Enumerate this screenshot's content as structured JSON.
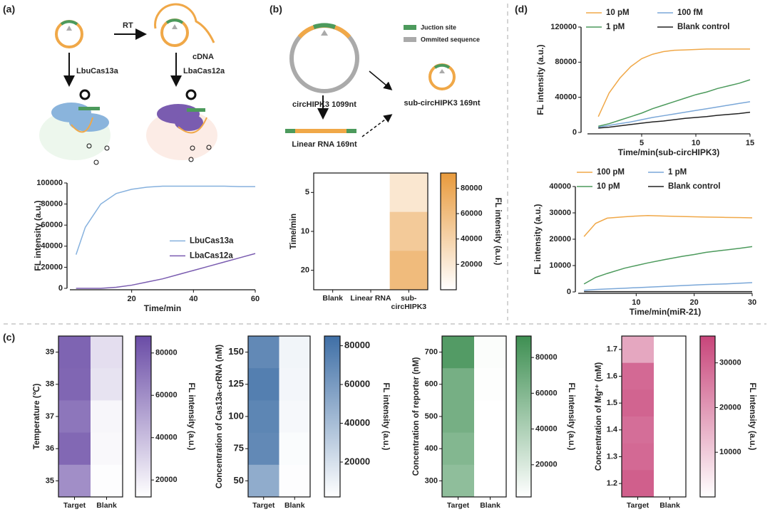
{
  "panels": [
    "(a)",
    "(b)",
    "(c)",
    "(d)"
  ],
  "diagram": {
    "a": {
      "rt": "RT",
      "cdna": "cDNA",
      "enzyme1": "LbuCas13a",
      "enzyme2": "LbaCas12a"
    },
    "b": {
      "legend1": "Juction site",
      "legend2": "Ommited sequence",
      "circ": "circHIPK3 1099nt",
      "linear": "Linear RNA 169nt",
      "sub": "sub-circHIPK3 169nt"
    }
  },
  "chart_data": [
    {
      "type": "line",
      "xlabel": "Time/min",
      "ylabel": "FL intensity (a.u.)",
      "x": [
        2,
        5,
        10,
        15,
        20,
        25,
        30,
        35,
        40,
        45,
        50,
        55,
        60
      ],
      "series": [
        {
          "name": "LbuCas13a",
          "color": "#86b1de",
          "values": [
            32000,
            58000,
            80000,
            90000,
            94000,
            96000,
            97000,
            97000,
            97000,
            97000,
            97000,
            96500,
            96500
          ]
        },
        {
          "name": "LbaCas12a",
          "color": "#7a5cb0",
          "values": [
            0,
            0,
            0,
            1000,
            3000,
            6000,
            9000,
            13000,
            17000,
            21000,
            25000,
            29000,
            33000
          ]
        }
      ],
      "xlim": [
        0,
        60
      ],
      "ylim": [
        0,
        100000
      ],
      "xticks": [
        20,
        40,
        60
      ],
      "yticks": [
        0,
        20000,
        40000,
        60000,
        80000,
        100000
      ],
      "legend": "center right"
    },
    {
      "type": "heatmap",
      "ylabel": "Time/min",
      "clabel": "FL intensity (a.u.)",
      "categories": [
        "Blank",
        "Linear RNA",
        "sub-circHIPK3"
      ],
      "rows": [
        5,
        10,
        20
      ],
      "values": [
        [
          0,
          0,
          22000
        ],
        [
          0,
          0,
          48000
        ],
        [
          0,
          0,
          62000
        ]
      ],
      "color": "#e89a3c",
      "clim": [
        0,
        92000
      ],
      "cticks": [
        20000,
        40000,
        60000,
        80000
      ]
    },
    {
      "type": "line",
      "xlabel": "Time/min(sub-circHIPK3)",
      "ylabel": "FL intensity (a.u.)",
      "x": [
        1,
        2,
        3,
        4,
        5,
        6,
        7,
        8,
        9,
        10,
        11,
        12,
        13,
        14,
        15
      ],
      "series": [
        {
          "name": "10 pM",
          "color": "#f0a848",
          "values": [
            18000,
            45000,
            62000,
            75000,
            84000,
            89000,
            92000,
            93500,
            94000,
            94500,
            95000,
            95000,
            95000,
            95000,
            95000
          ]
        },
        {
          "name": "100 fM",
          "color": "#7aa7d8",
          "values": [
            6000,
            8000,
            10000,
            12000,
            14500,
            17000,
            19000,
            21000,
            23000,
            25000,
            27000,
            29000,
            31000,
            33000,
            35000
          ]
        },
        {
          "name": "1 pM",
          "color": "#4c9a5c",
          "values": [
            7000,
            10000,
            14000,
            18000,
            22000,
            27000,
            31000,
            35000,
            39000,
            43000,
            46000,
            50000,
            53000,
            56000,
            60000
          ]
        },
        {
          "name": "Blank control",
          "color": "#222222",
          "values": [
            5000,
            6000,
            7500,
            9000,
            10500,
            12000,
            13000,
            14500,
            16000,
            17000,
            18000,
            19500,
            20500,
            21500,
            23000
          ]
        }
      ],
      "xlim": [
        0,
        15
      ],
      "ylim": [
        0,
        120000
      ],
      "xticks": [
        5,
        10,
        15
      ],
      "yticks": [
        0,
        40000,
        80000,
        120000
      ],
      "legend": "upper left"
    },
    {
      "type": "line",
      "xlabel": "Time/min(miR-21)",
      "ylabel": "FL intensity (a.u.)",
      "x": [
        1,
        3,
        5,
        8,
        10,
        12,
        15,
        18,
        20,
        22,
        25,
        28,
        30
      ],
      "series": [
        {
          "name": "100 pM",
          "color": "#f0a848",
          "values": [
            21000,
            26000,
            28000,
            28500,
            28800,
            29000,
            28800,
            28600,
            28500,
            28400,
            28300,
            28200,
            28100
          ]
        },
        {
          "name": "1 pM",
          "color": "#7aa7d8",
          "values": [
            600,
            900,
            1100,
            1400,
            1600,
            1800,
            2100,
            2400,
            2600,
            2800,
            3000,
            3300,
            3500
          ]
        },
        {
          "name": "10 pM",
          "color": "#4c9a5c",
          "values": [
            3000,
            5500,
            7000,
            9000,
            10000,
            11000,
            12300,
            13500,
            14200,
            15000,
            15800,
            16600,
            17200
          ]
        },
        {
          "name": "Blank control",
          "color": "#222222",
          "values": [
            100,
            100,
            100,
            100,
            100,
            100,
            100,
            100,
            100,
            100,
            100,
            100,
            100
          ]
        }
      ],
      "xlim": [
        0,
        30
      ],
      "ylim": [
        0,
        40000
      ],
      "xticks": [
        10,
        20,
        30
      ],
      "yticks": [
        0,
        10000,
        20000,
        30000,
        40000
      ],
      "legend": "upper left"
    },
    {
      "type": "heatmap",
      "ylabel": "Temperature (℃)",
      "clabel": "FL intensity (a.u.)",
      "categories": [
        "Target",
        "Blank"
      ],
      "rows": [
        39,
        38,
        37,
        36,
        35
      ],
      "values": [
        [
          78000,
          26000
        ],
        [
          77000,
          24000
        ],
        [
          70000,
          16000
        ],
        [
          76000,
          15000
        ],
        [
          60000,
          13000
        ]
      ],
      "color": "#6a4ca6",
      "clim": [
        12000,
        88000
      ],
      "cticks": [
        20000,
        40000,
        60000,
        80000
      ]
    },
    {
      "type": "heatmap",
      "ylabel": "Concentration of Cas13a-crRNA (nM)",
      "clabel": "FL intensity (a.u.)",
      "categories": [
        "Target",
        "Blank"
      ],
      "rows": [
        150,
        125,
        100,
        75,
        50
      ],
      "values": [
        [
          70000,
          8000
        ],
        [
          76000,
          7000
        ],
        [
          72000,
          6000
        ],
        [
          70000,
          4000
        ],
        [
          50000,
          3000
        ]
      ],
      "color": "#3f6fa6",
      "clim": [
        2000,
        85000
      ],
      "cticks": [
        20000,
        40000,
        60000,
        80000
      ]
    },
    {
      "type": "heatmap",
      "ylabel": "Concentration of reporter (nM)",
      "clabel": "FL intensity (a.u.)",
      "categories": [
        "Target",
        "Blank"
      ],
      "rows": [
        700,
        600,
        500,
        400,
        300
      ],
      "values": [
        [
          82000,
          4000
        ],
        [
          66000,
          3000
        ],
        [
          66000,
          2000
        ],
        [
          60000,
          2000
        ],
        [
          54000,
          2000
        ]
      ],
      "color": "#3e8f52",
      "clim": [
        2000,
        92000
      ],
      "cticks": [
        20000,
        40000,
        60000,
        80000
      ]
    },
    {
      "type": "heatmap",
      "ylabel": "Concentration of Mg²⁺ (mM)",
      "clabel": "FL intensity (a.u.)",
      "categories": [
        "Target",
        "Blank"
      ],
      "rows": [
        1.7,
        1.6,
        1.5,
        1.4,
        1.3,
        1.2
      ],
      "values": [
        [
          17000,
          0
        ],
        [
          29000,
          0
        ],
        [
          30000,
          0
        ],
        [
          28000,
          0
        ],
        [
          29000,
          0
        ],
        [
          31000,
          0
        ]
      ],
      "color": "#c8457a",
      "clim": [
        0,
        36000
      ],
      "cticks": [
        10000,
        20000,
        30000
      ]
    }
  ]
}
